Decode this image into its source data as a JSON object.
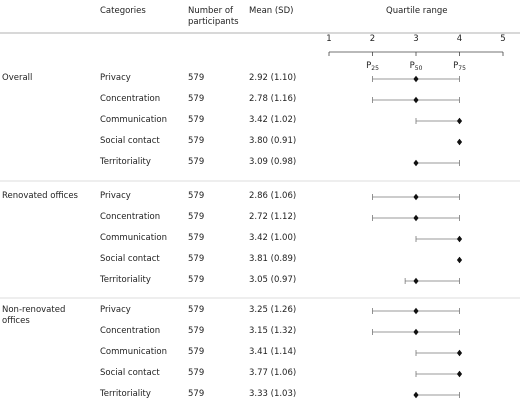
{
  "header": {
    "categories": "Categories",
    "participants": "Number of participants",
    "mean": "Mean (SD)",
    "quartile_range": "Quartile range"
  },
  "axis": {
    "xlim": [
      1,
      5
    ],
    "xticks": [
      1,
      2,
      3,
      4,
      5
    ]
  },
  "quartile_labels": [
    {
      "text": "P",
      "sub": "25"
    },
    {
      "text": "P",
      "sub": "50"
    },
    {
      "text": "P",
      "sub": "75"
    }
  ],
  "groups": [
    {
      "label": "Overall",
      "rows": [
        {
          "category": "Privacy",
          "n": 579,
          "mean_sd": "2.92 (1.10)",
          "p25": 2,
          "p50": 3,
          "p75": 4
        },
        {
          "category": "Concentration",
          "n": 579,
          "mean_sd": "2.78 (1.16)",
          "p25": 2,
          "p50": 3,
          "p75": 4
        },
        {
          "category": "Communication",
          "n": 579,
          "mean_sd": "3.42 (1.02)",
          "p25": 3,
          "p50": 4,
          "p75": 4
        },
        {
          "category": "Social contact",
          "n": 579,
          "mean_sd": "3.80 (0.91)",
          "p25": 4,
          "p50": 4,
          "p75": 4
        },
        {
          "category": "Territoriality",
          "n": 579,
          "mean_sd": "3.09 (0.98)",
          "p25": 3,
          "p50": 3,
          "p75": 4
        }
      ]
    },
    {
      "label": "Renovated offices",
      "rows": [
        {
          "category": "Privacy",
          "n": 579,
          "mean_sd": "2.86 (1.06)",
          "p25": 2,
          "p50": 3,
          "p75": 4
        },
        {
          "category": "Concentration",
          "n": 579,
          "mean_sd": "2.72 (1.12)",
          "p25": 2,
          "p50": 3,
          "p75": 4
        },
        {
          "category": "Communication",
          "n": 579,
          "mean_sd": "3.42 (1.00)",
          "p25": 3,
          "p50": 4,
          "p75": 4
        },
        {
          "category": "Social contact",
          "n": 579,
          "mean_sd": "3.81 (0.89)",
          "p25": 4,
          "p50": 4,
          "p75": 4
        },
        {
          "category": "Territoriality",
          "n": 579,
          "mean_sd": "3.05 (0.97)",
          "p25": 2.75,
          "p50": 3,
          "p75": 4
        }
      ]
    },
    {
      "label": "Non-renovated offices",
      "rows": [
        {
          "category": "Privacy",
          "n": 579,
          "mean_sd": "3.25 (1.26)",
          "p25": 2,
          "p50": 3,
          "p75": 4
        },
        {
          "category": "Concentration",
          "n": 579,
          "mean_sd": "3.15 (1.32)",
          "p25": 2,
          "p50": 3,
          "p75": 4
        },
        {
          "category": "Communication",
          "n": 579,
          "mean_sd": "3.41 (1.14)",
          "p25": 3,
          "p50": 4,
          "p75": 4
        },
        {
          "category": "Social contact",
          "n": 579,
          "mean_sd": "3.77 (1.06)",
          "p25": 3,
          "p50": 4,
          "p75": 4
        },
        {
          "category": "Territoriality",
          "n": 579,
          "mean_sd": "3.33 (1.03)",
          "p25": 3,
          "p50": 3,
          "p75": 4
        }
      ]
    }
  ]
}
